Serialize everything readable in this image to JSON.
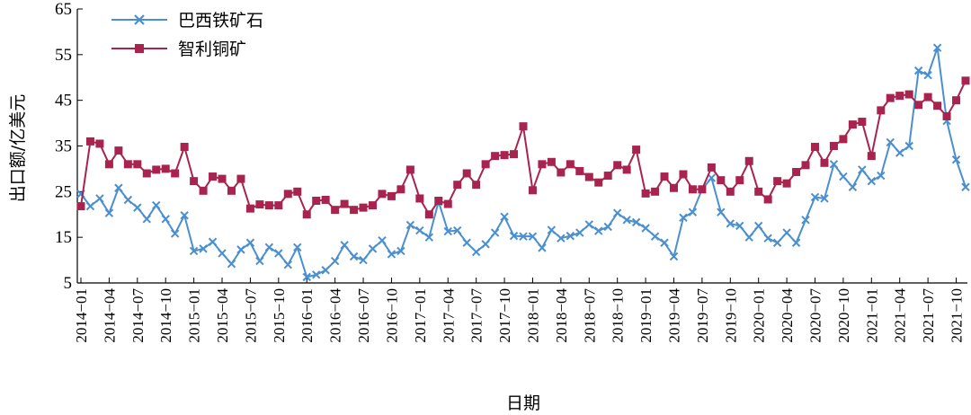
{
  "chart_data": {
    "type": "line",
    "xlabel": "日期",
    "ylabel": "出口额/亿美元",
    "ylim": [
      5,
      65
    ],
    "yticks": [
      5,
      15,
      25,
      35,
      45,
      55,
      65
    ],
    "xticks": [
      "2014−01",
      "2014−04",
      "2014−07",
      "2014−10",
      "2015−01",
      "2015−04",
      "2015−07",
      "2015−10",
      "2016−01",
      "2016−04",
      "2016−07",
      "2016−10",
      "2017−01",
      "2017−04",
      "2017−07",
      "2017−10",
      "2018−01",
      "2018−04",
      "2018−07",
      "2018−10",
      "2019−01",
      "2019−04",
      "2019−07",
      "2019−10",
      "2020−01",
      "2020−04",
      "2020−07",
      "2020−10",
      "2021−01",
      "2021−04",
      "2021−07",
      "2021−10"
    ],
    "x_start": "2014-01",
    "x_end": "2021-12",
    "legend_position": "top-left",
    "grid": false,
    "series": [
      {
        "name": "巴西铁矿石",
        "color": "#4a8fcf",
        "marker": "x",
        "values": [
          24.5,
          21.8,
          23.5,
          20.3,
          25.8,
          23.2,
          21.5,
          19.0,
          22.0,
          19.0,
          15.8,
          19.8,
          12.0,
          12.5,
          14.0,
          11.5,
          9.2,
          12.3,
          13.8,
          9.8,
          12.8,
          11.5,
          9.0,
          12.8,
          6.3,
          6.8,
          7.8,
          9.8,
          13.3,
          10.8,
          10.0,
          12.5,
          14.3,
          11.3,
          12.0,
          17.7,
          16.5,
          15.0,
          22.8,
          16.3,
          16.5,
          13.8,
          11.8,
          13.5,
          16.0,
          19.5,
          15.3,
          15.2,
          15.2,
          12.7,
          16.6,
          14.8,
          15.3,
          16.0,
          17.8,
          16.4,
          17.3,
          20.3,
          18.8,
          18.3,
          17.0,
          15.2,
          13.8,
          10.8,
          19.3,
          20.5,
          25.5,
          28.0,
          20.5,
          18.0,
          17.5,
          15.0,
          17.5,
          14.8,
          13.8,
          16.0,
          13.8,
          18.8,
          23.8,
          23.5,
          31.0,
          28.3,
          26.0,
          29.8,
          27.3,
          28.5,
          35.8,
          33.5,
          35.0,
          51.5,
          50.5,
          56.5,
          40.5,
          32.0,
          26.0
        ]
      },
      {
        "name": "智利铜矿",
        "color": "#a8244f",
        "marker": "square",
        "values": [
          21.8,
          36.0,
          35.5,
          31.0,
          34.0,
          31.0,
          31.0,
          29.0,
          29.8,
          30.0,
          29.0,
          34.8,
          27.3,
          25.2,
          28.3,
          27.8,
          25.2,
          27.8,
          21.3,
          22.2,
          22.0,
          22.0,
          24.5,
          25.0,
          20.0,
          23.0,
          23.2,
          21.0,
          22.3,
          21.0,
          21.5,
          22.0,
          24.5,
          24.0,
          25.5,
          29.8,
          23.5,
          20.0,
          23.0,
          22.3,
          26.5,
          29.0,
          26.5,
          31.0,
          32.8,
          33.0,
          33.2,
          39.3,
          25.3,
          31.0,
          31.5,
          29.2,
          31.0,
          29.5,
          28.2,
          27.0,
          28.5,
          30.8,
          29.8,
          34.2,
          24.6,
          25.0,
          28.3,
          25.8,
          28.8,
          25.5,
          25.5,
          30.3,
          27.5,
          25.0,
          27.5,
          31.7,
          25.0,
          23.3,
          27.3,
          26.8,
          29.3,
          30.8,
          34.8,
          31.3,
          35.0,
          36.5,
          39.7,
          40.3,
          32.8,
          42.8,
          45.5,
          46.0,
          46.3,
          44.0,
          45.7,
          43.8,
          41.5,
          45.0,
          49.3
        ]
      }
    ]
  }
}
